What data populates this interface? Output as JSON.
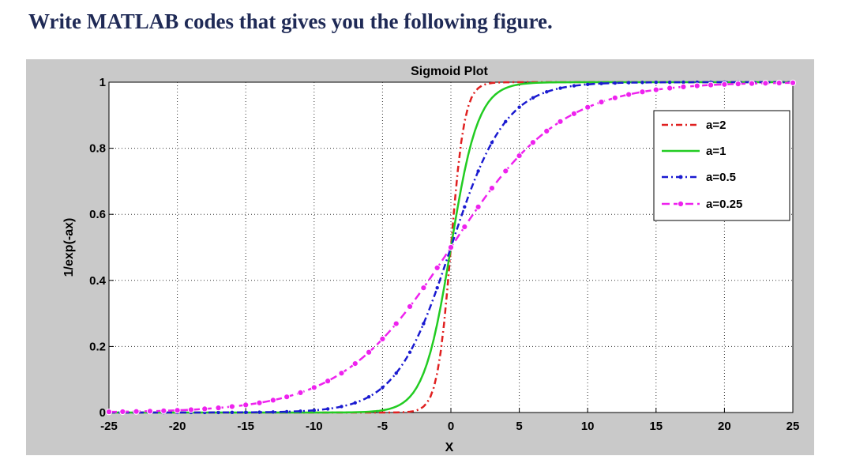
{
  "question": "Write MATLAB codes that gives you the following figure.",
  "chart_data": {
    "type": "line",
    "title": "Sigmoid Plot",
    "xlabel": "X",
    "ylabel": "1/exp(-ax)",
    "xlim": [
      -25,
      25
    ],
    "ylim": [
      0,
      1
    ],
    "xticks": [
      "-25",
      "-20",
      "-15",
      "-10",
      "-5",
      "0",
      "5",
      "10",
      "15",
      "20",
      "25"
    ],
    "yticks": [
      "0",
      "0.2",
      "0.4",
      "0.6",
      "0.8",
      "1"
    ],
    "grid": true,
    "legend_position": "top-right",
    "function": "1/(1+exp(-a*x))",
    "series": [
      {
        "name": "a=2",
        "a": 2,
        "color": "#e02020",
        "linestyle": "dashdot",
        "marker": "none"
      },
      {
        "name": "a=1",
        "a": 1,
        "color": "#22cc22",
        "linestyle": "solid",
        "marker": "none"
      },
      {
        "name": "a=0.5",
        "a": 0.5,
        "color": "#1a1ad0",
        "linestyle": "dashdot",
        "marker": "dot"
      },
      {
        "name": "a=0.25",
        "a": 0.25,
        "color": "#ee22ee",
        "linestyle": "dashed",
        "marker": "circle"
      }
    ]
  }
}
